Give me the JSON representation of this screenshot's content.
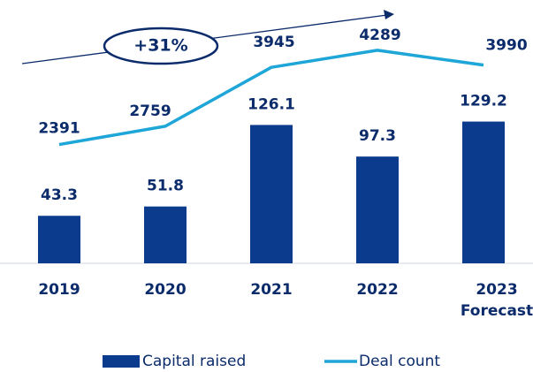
{
  "chart_data": {
    "type": "bar",
    "categories": [
      "2019",
      "2020",
      "2021",
      "2022",
      "2023\nForecast"
    ],
    "series": [
      {
        "name": "Capital raised",
        "type": "bar",
        "color": "#0b3b8c",
        "values": [
          43.3,
          51.8,
          126.1,
          97.3,
          129.2
        ]
      },
      {
        "name": "Deal count",
        "type": "line",
        "axis": "y2",
        "color": "#1ea6d8",
        "values": [
          2391,
          2759,
          3945,
          4289,
          3990
        ]
      }
    ],
    "ylim": [
      0,
      240
    ],
    "y2lim": [
      0,
      5300
    ],
    "annotation": "+31%"
  }
}
